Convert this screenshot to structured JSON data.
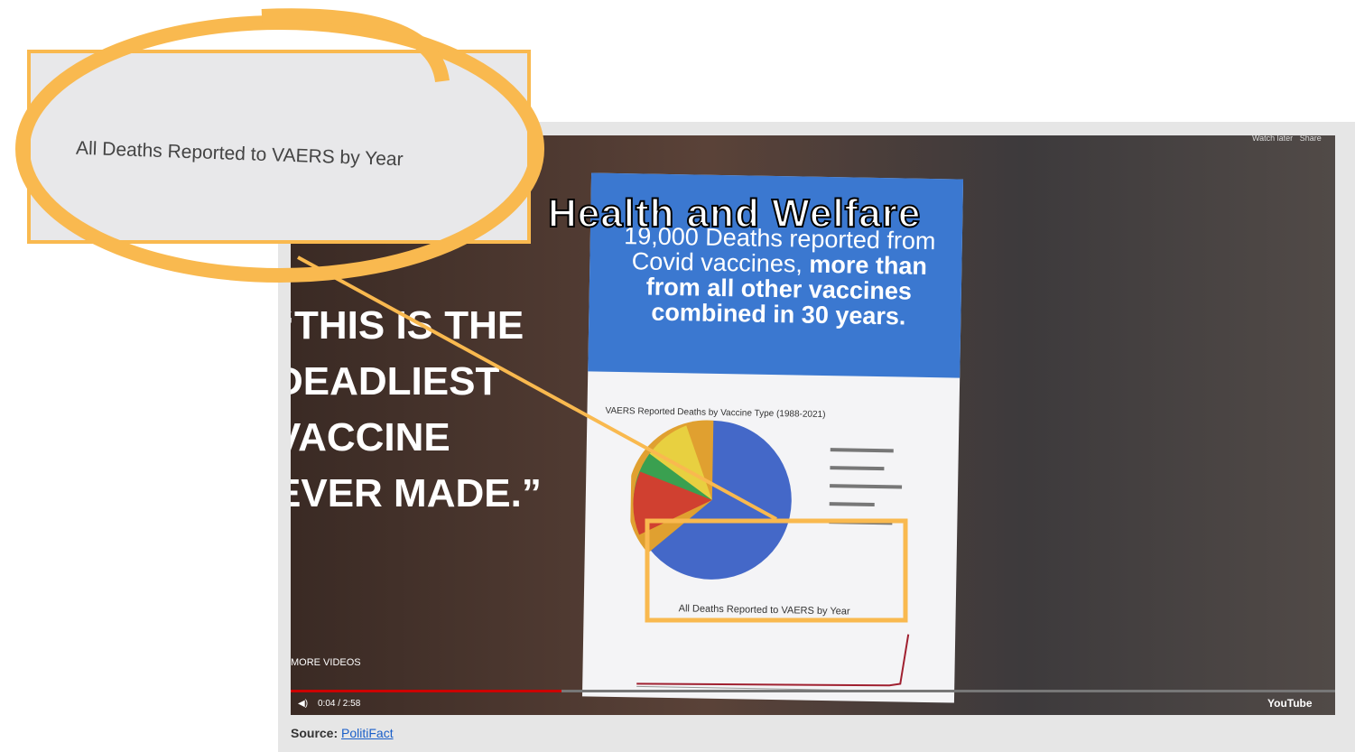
{
  "video": {
    "poster_banner": "Health and Welfare",
    "poster_headline_regular": "19,000 Deaths reported from Covid vaccines,",
    "poster_headline_bold": "more than from all other vaccines combined in 30 years.",
    "pie_title": "VAERS Reported Deaths by Vaccine Type (1988-2021)",
    "line_title": "All Deaths Reported to VAERS by Year",
    "quote_lines": [
      "“THIS IS THE",
      "DEADLIEST",
      "VACCINE",
      "EVER MADE.”"
    ],
    "more_videos": "MORE VIDEOS",
    "time": "0:04 / 2:58",
    "watch_later": "Watch later",
    "share": "Share",
    "brand": "YouTube"
  },
  "callout": {
    "text": "All Deaths Reported to VAERS by Year"
  },
  "source": {
    "label": "Source:",
    "link": "PolitiFact"
  }
}
